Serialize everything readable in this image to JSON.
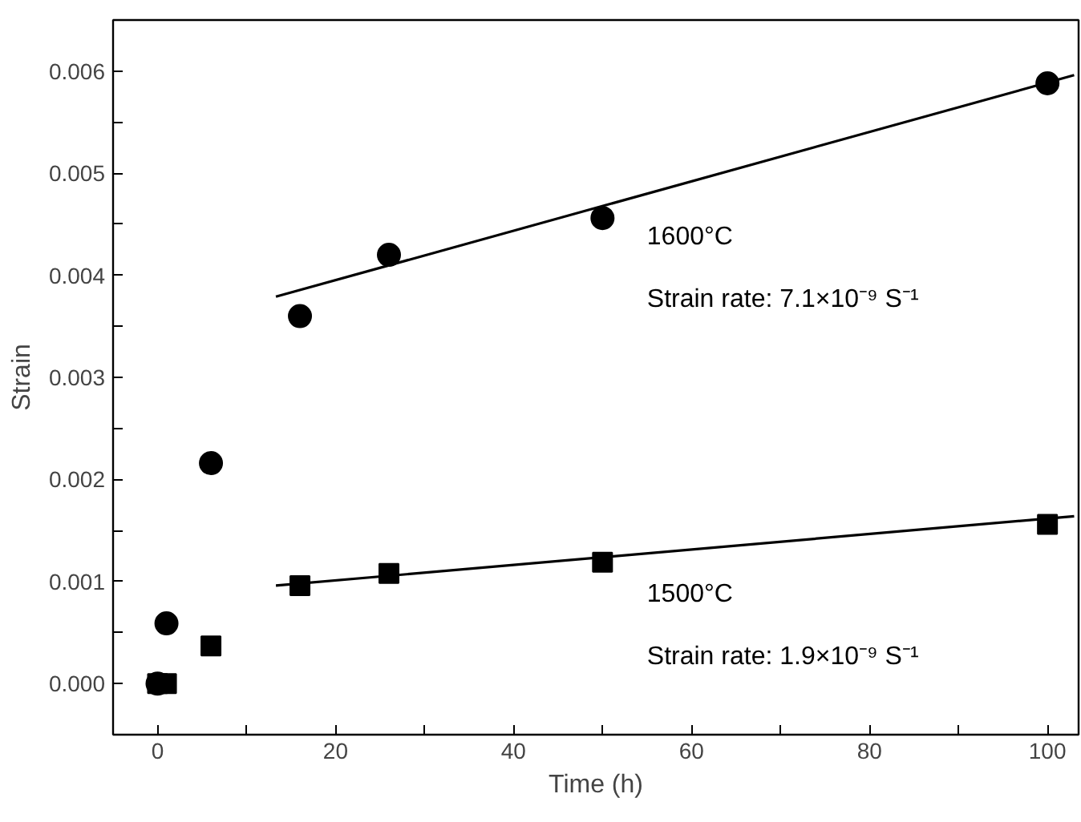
{
  "chart_data": {
    "type": "scatter",
    "xlabel": "Time (h)",
    "ylabel": "Strain",
    "xlim": [
      -5,
      103.5
    ],
    "ylim": [
      -0.0005,
      0.0065
    ],
    "xticks": [
      0,
      {
        "value": 10,
        "label": null
      },
      20,
      {
        "value": 30,
        "label": null
      },
      40,
      {
        "value": 50,
        "label": null
      },
      60,
      {
        "value": 70,
        "label": null
      },
      80,
      {
        "value": 90,
        "label": null
      },
      100
    ],
    "yticks": [
      {
        "value": 0,
        "label": "0.000"
      },
      {
        "value": 0.0005,
        "label": null
      },
      {
        "value": 0.001,
        "label": "0.001"
      },
      {
        "value": 0.0015,
        "label": null
      },
      {
        "value": 0.002,
        "label": "0.002"
      },
      {
        "value": 0.0025,
        "label": null
      },
      {
        "value": 0.003,
        "label": "0.003"
      },
      {
        "value": 0.0035,
        "label": null
      },
      {
        "value": 0.004,
        "label": "0.004"
      },
      {
        "value": 0.0045,
        "label": null
      },
      {
        "value": 0.005,
        "label": "0.005"
      },
      {
        "value": 0.0055,
        "label": null
      },
      {
        "value": 0.006,
        "label": "0.006"
      }
    ],
    "grid": false,
    "series": [
      {
        "marker": "circle",
        "color": "#000000",
        "x": [
          0,
          1,
          6,
          16,
          26,
          50,
          100
        ],
        "values": [
          0,
          0.00059,
          0.00216,
          0.0036,
          0.0042,
          0.00456,
          0.00588
        ]
      },
      {
        "marker": "square",
        "color": "#000000",
        "x": [
          0,
          1,
          6,
          16,
          26,
          50,
          100
        ],
        "values": [
          0,
          0,
          0.00037,
          0.00096,
          0.00108,
          0.00119,
          0.00156
        ]
      },
      {
        "type": "line",
        "line_style": "solid",
        "color": "#000000",
        "x": [
          13.3,
          103
        ],
        "values": [
          0.00379,
          0.00596
        ]
      },
      {
        "type": "line",
        "line_style": "solid",
        "color": "#000000",
        "x": [
          13.3,
          103
        ],
        "values": [
          0.00096,
          0.00164
        ]
      }
    ],
    "annotations": [
      "1600°C",
      "Strain rate: 7.1×10⁻⁹ S⁻¹",
      "1500°C",
      "Strain rate: 1.9×10⁻⁹ S⁻¹"
    ]
  }
}
